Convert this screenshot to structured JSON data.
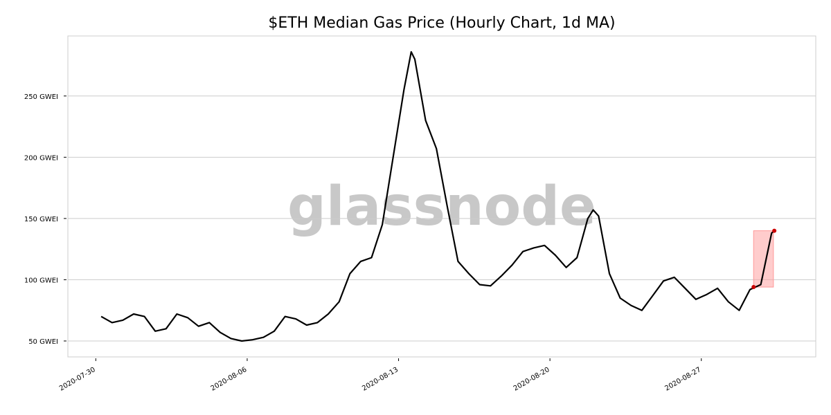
{
  "chart_data": {
    "type": "line",
    "title": "$ETH Median Gas Price (Hourly Chart, 1d MA)",
    "watermark": "glassnode",
    "x": [
      "2020-07-30T06:00",
      "2020-07-30T18:00",
      "2020-07-31T06:00",
      "2020-07-31T18:00",
      "2020-08-01T06:00",
      "2020-08-01T18:00",
      "2020-08-02T06:00",
      "2020-08-02T18:00",
      "2020-08-03T06:00",
      "2020-08-03T18:00",
      "2020-08-04T06:00",
      "2020-08-04T18:00",
      "2020-08-05T06:00",
      "2020-08-05T18:00",
      "2020-08-06T06:00",
      "2020-08-06T18:00",
      "2020-08-07T06:00",
      "2020-08-07T18:00",
      "2020-08-08T06:00",
      "2020-08-08T18:00",
      "2020-08-09T06:00",
      "2020-08-09T18:00",
      "2020-08-10T06:00",
      "2020-08-10T18:00",
      "2020-08-11T06:00",
      "2020-08-11T18:00",
      "2020-08-12T06:00",
      "2020-08-12T18:00",
      "2020-08-13T06:00",
      "2020-08-13T14:00",
      "2020-08-13T18:00",
      "2020-08-14T06:00",
      "2020-08-14T18:00",
      "2020-08-15T06:00",
      "2020-08-15T18:00",
      "2020-08-16T06:00",
      "2020-08-16T18:00",
      "2020-08-17T06:00",
      "2020-08-17T18:00",
      "2020-08-18T06:00",
      "2020-08-18T18:00",
      "2020-08-19T06:00",
      "2020-08-19T18:00",
      "2020-08-20T06:00",
      "2020-08-20T18:00",
      "2020-08-21T06:00",
      "2020-08-21T18:00",
      "2020-08-22T00:00",
      "2020-08-22T06:00",
      "2020-08-22T18:00",
      "2020-08-23T06:00",
      "2020-08-23T18:00",
      "2020-08-24T06:00",
      "2020-08-24T18:00",
      "2020-08-25T06:00",
      "2020-08-25T18:00",
      "2020-08-26T06:00",
      "2020-08-26T18:00",
      "2020-08-27T06:00",
      "2020-08-27T18:00",
      "2020-08-28T06:00",
      "2020-08-28T18:00",
      "2020-08-29T06:00",
      "2020-08-29T18:00",
      "2020-08-30T06:00",
      "2020-08-30T09:00"
    ],
    "series": [
      {
        "name": "Median Gas Price",
        "color": "#000000",
        "values": [
          70,
          65,
          67,
          72,
          70,
          58,
          60,
          72,
          69,
          62,
          65,
          57,
          52,
          50,
          51,
          53,
          58,
          70,
          68,
          63,
          65,
          72,
          82,
          105,
          115,
          118,
          145,
          200,
          255,
          286,
          280,
          230,
          207,
          160,
          115,
          105,
          96,
          95,
          103,
          112,
          123,
          126,
          128,
          120,
          110,
          118,
          150,
          157,
          152,
          105,
          85,
          79,
          75,
          87,
          99,
          102,
          93,
          84,
          88,
          93,
          82,
          75,
          92,
          96,
          138,
          140
        ]
      }
    ],
    "highlight": {
      "x": [
        "2020-08-29T10:00",
        "2020-08-30T08:00"
      ],
      "y": [
        94,
        140
      ],
      "color": "#ff9999",
      "points": {
        "x": [
          "2020-08-29T10:00",
          "2020-08-30T09:00"
        ],
        "values": [
          94,
          140
        ],
        "color": "#cc0000"
      }
    },
    "xlim": [
      "2020-07-28T17:00",
      "2020-09-01T07:00"
    ],
    "xticks": [
      "2020-07-30",
      "2020-08-06",
      "2020-08-13",
      "2020-08-20",
      "2020-08-27"
    ],
    "ylim": [
      37,
      299
    ],
    "yticks": [
      {
        "value": 50,
        "label": "50 GWEI"
      },
      {
        "value": 100,
        "label": "100 GWEI"
      },
      {
        "value": 150,
        "label": "150 GWEI"
      },
      {
        "value": 200,
        "label": "200 GWEI"
      },
      {
        "value": 250,
        "label": "250 GWEI"
      }
    ],
    "grid": true
  }
}
